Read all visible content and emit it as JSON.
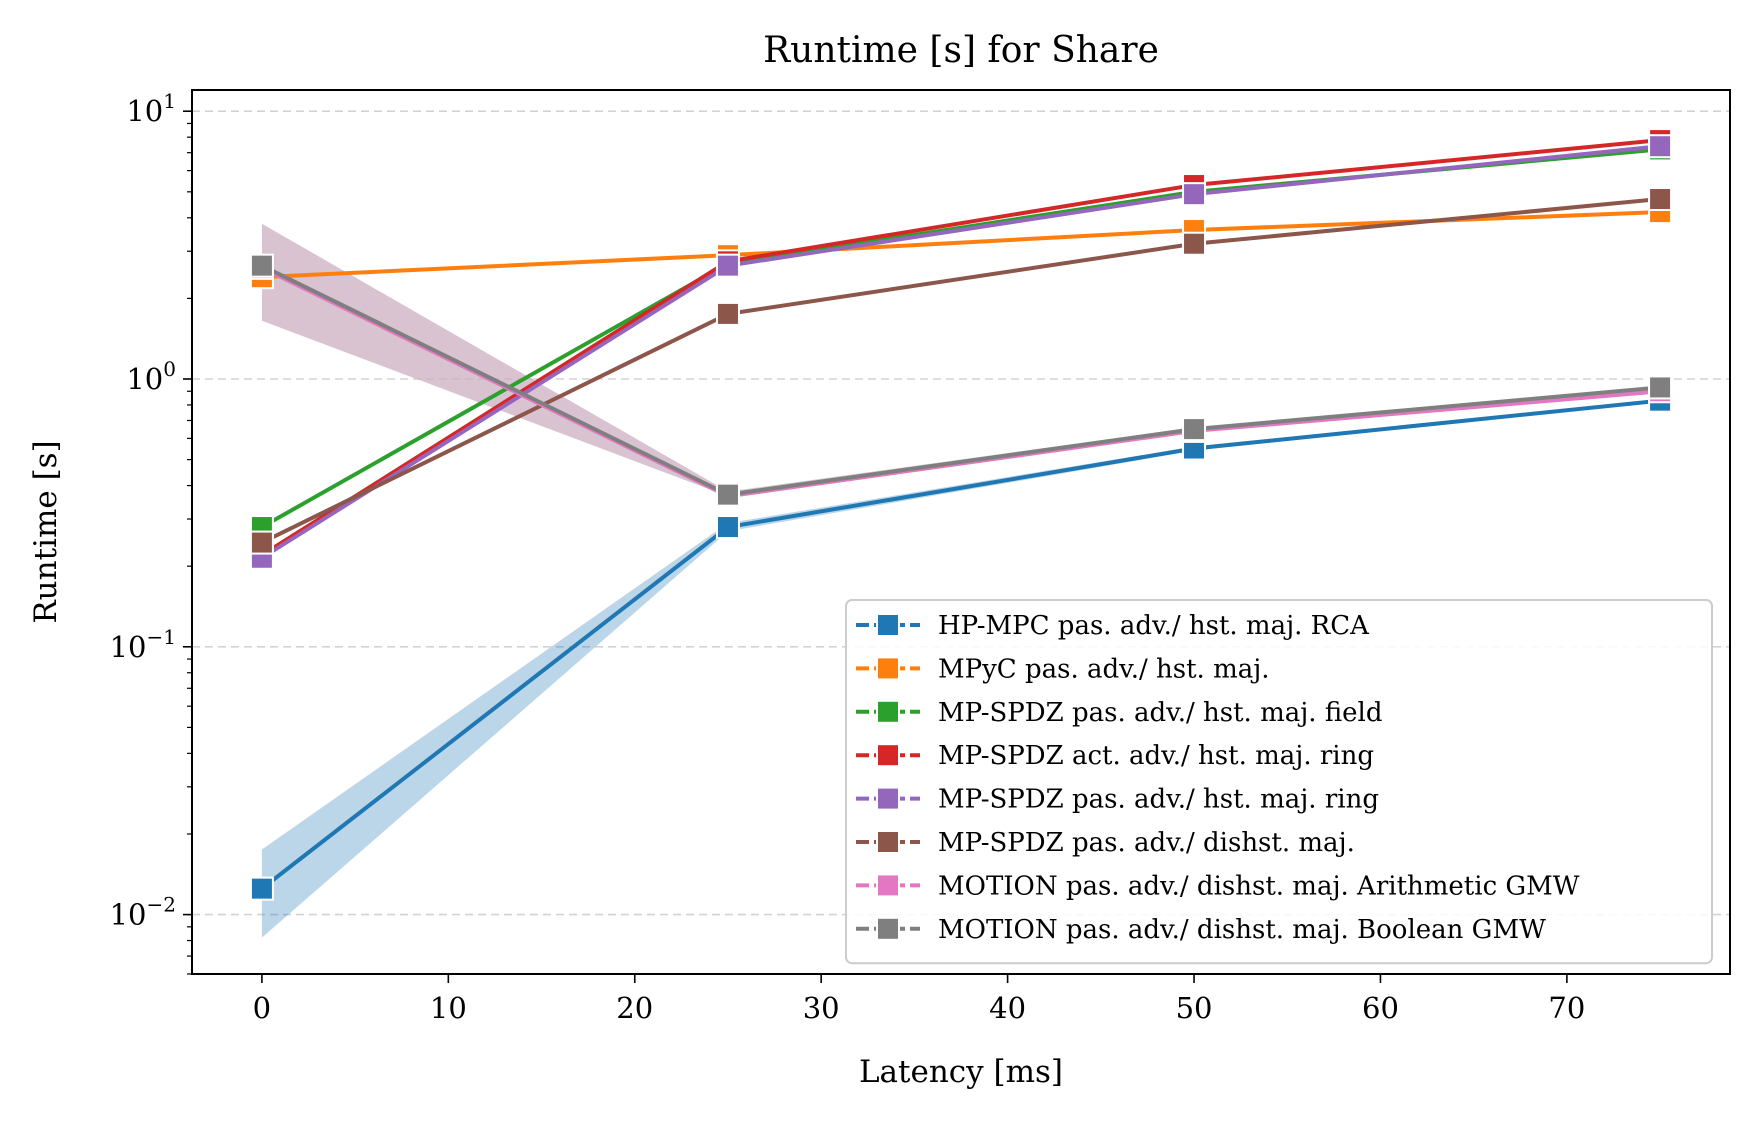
{
  "chart_data": {
    "type": "line",
    "title": "Runtime [s] for Share",
    "xlabel": "Latency [ms]",
    "ylabel": "Runtime [s]",
    "yscale": "log",
    "xlim": [
      -3.75,
      78.75
    ],
    "ylim": [
      0.006,
      12
    ],
    "x_ticks": [
      0,
      10,
      20,
      30,
      40,
      50,
      60,
      70
    ],
    "y_ticks": [
      {
        "value": 0.01,
        "base": "10",
        "exp": "−2"
      },
      {
        "value": 0.1,
        "base": "10",
        "exp": "−1"
      },
      {
        "value": 1,
        "base": "10",
        "exp": "0"
      },
      {
        "value": 10,
        "base": "10",
        "exp": "1"
      }
    ],
    "grid": "horizontal-major-dashed",
    "legend_position": "lower-right",
    "x": [
      0,
      25,
      50,
      75
    ],
    "series": [
      {
        "name": "HP-MPC pas. adv./ hst. maj. RCA",
        "color": "#1f77b4",
        "values": [
          0.0125,
          0.28,
          0.55,
          0.83
        ],
        "band_low": [
          0.0082,
          0.27,
          0.54,
          0.82
        ],
        "band_high": [
          0.0175,
          0.29,
          0.56,
          0.84
        ]
      },
      {
        "name": "MPyC pas. adv./ hst. maj.",
        "color": "#ff7f0e",
        "values": [
          2.4,
          2.9,
          3.6,
          4.2
        ]
      },
      {
        "name": "MP-SPDZ pas. adv./ hst. maj. field",
        "color": "#2ca02c",
        "values": [
          0.28,
          2.7,
          5.0,
          7.2
        ]
      },
      {
        "name": "MP-SPDZ act. adv./ hst. maj. ring",
        "color": "#d62728",
        "values": [
          0.22,
          2.75,
          5.3,
          7.8
        ]
      },
      {
        "name": "MP-SPDZ pas. adv./ hst. maj. ring",
        "color": "#9467bd",
        "values": [
          0.215,
          2.65,
          4.9,
          7.4
        ]
      },
      {
        "name": "MP-SPDZ pas. adv./ dishst. maj.",
        "color": "#8c564b",
        "values": [
          0.245,
          1.75,
          3.2,
          4.7
        ]
      },
      {
        "name": "MOTION pas. adv./ dishst. maj. Arithmetic GMW",
        "color": "#e377c2",
        "values": [
          2.6,
          0.365,
          0.64,
          0.9
        ]
      },
      {
        "name": "MOTION pas. adv./ dishst. maj. Boolean GMW",
        "color": "#7f7f7f",
        "values": [
          2.65,
          0.37,
          0.65,
          0.93
        ],
        "band_low": [
          1.65,
          0.365,
          0.645,
          0.92
        ],
        "band_high": [
          3.8,
          0.38,
          0.66,
          0.94
        ],
        "band_color": "#c9a9bd"
      }
    ]
  }
}
